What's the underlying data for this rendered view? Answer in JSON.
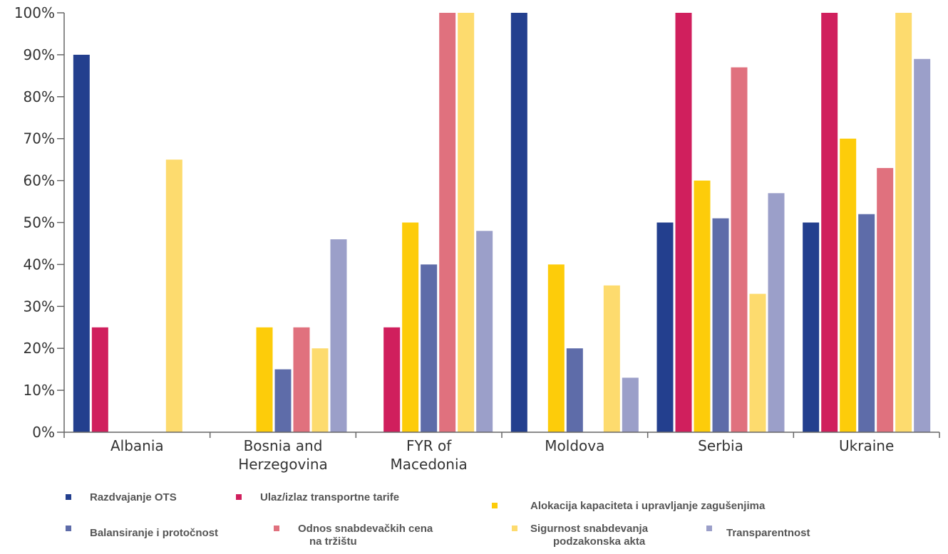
{
  "chart_data": {
    "type": "bar",
    "categories": [
      [
        "Albania"
      ],
      [
        "Bosnia and",
        "Herzegovina"
      ],
      [
        "FYR of",
        "Macedonia"
      ],
      [
        "Moldova"
      ],
      [
        "Serbia"
      ],
      [
        "Ukraine"
      ]
    ],
    "series": [
      {
        "name": "Razdvajanje OTS",
        "color": "#233f8e",
        "values": [
          90,
          0,
          0,
          100,
          50,
          50
        ]
      },
      {
        "name": "Ulaz/izlaz transportne tarife",
        "color": "#d01f5d",
        "values": [
          25,
          0,
          25,
          0,
          100,
          100
        ]
      },
      {
        "name": "Alokacija kapaciteta i upravljanje zagušenjima",
        "color": "#fdcc0a",
        "values": [
          0,
          25,
          50,
          40,
          60,
          70
        ]
      },
      {
        "name": "Balansiranje i protočnost",
        "color": "#5e6ca9",
        "values": [
          0,
          15,
          40,
          20,
          51,
          52
        ]
      },
      {
        "name": "Odnos snabdevačkih cena na tržištu",
        "color": "#e0717e",
        "values": [
          0,
          25,
          100,
          0,
          87,
          63
        ]
      },
      {
        "name": "Sigurnost snabdevanja podzakonska akta",
        "color": "#fddb6e",
        "values": [
          65,
          20,
          100,
          35,
          33,
          100
        ]
      },
      {
        "name": "Transparentnost",
        "color": "#9b9fc9",
        "values": [
          0,
          46,
          48,
          13,
          57,
          89
        ]
      }
    ],
    "y_ticks": [
      "0%",
      "10%",
      "20%",
      "30%",
      "40%",
      "50%",
      "60%",
      "70%",
      "80%",
      "90%",
      "100%"
    ],
    "ylim": [
      0,
      100
    ],
    "grid": false,
    "legend_position": "bottom",
    "legend_items": [
      {
        "lines": [
          "Razdvajanje OTS"
        ],
        "color": "#233f8e"
      },
      {
        "lines": [
          "Ulaz/izlaz transportne tarife"
        ],
        "color": "#d01f5d"
      },
      {
        "lines": [
          "Alokacija kapaciteta i upravljanje zagušenjima"
        ],
        "color": "#fdcc0a"
      },
      {
        "lines": [
          "Balansiranje i protočnost"
        ],
        "color": "#5e6ca9"
      },
      {
        "lines": [
          "Odnos snabdevačkih  cena",
          "na tržištu"
        ],
        "color": "#e0717e"
      },
      {
        "lines": [
          "Sigurnost snabdevanja",
          "podzakonska akta"
        ],
        "color": "#fddb6e"
      },
      {
        "lines": [
          "Transparentnost"
        ],
        "color": "#9b9fc9"
      }
    ]
  }
}
